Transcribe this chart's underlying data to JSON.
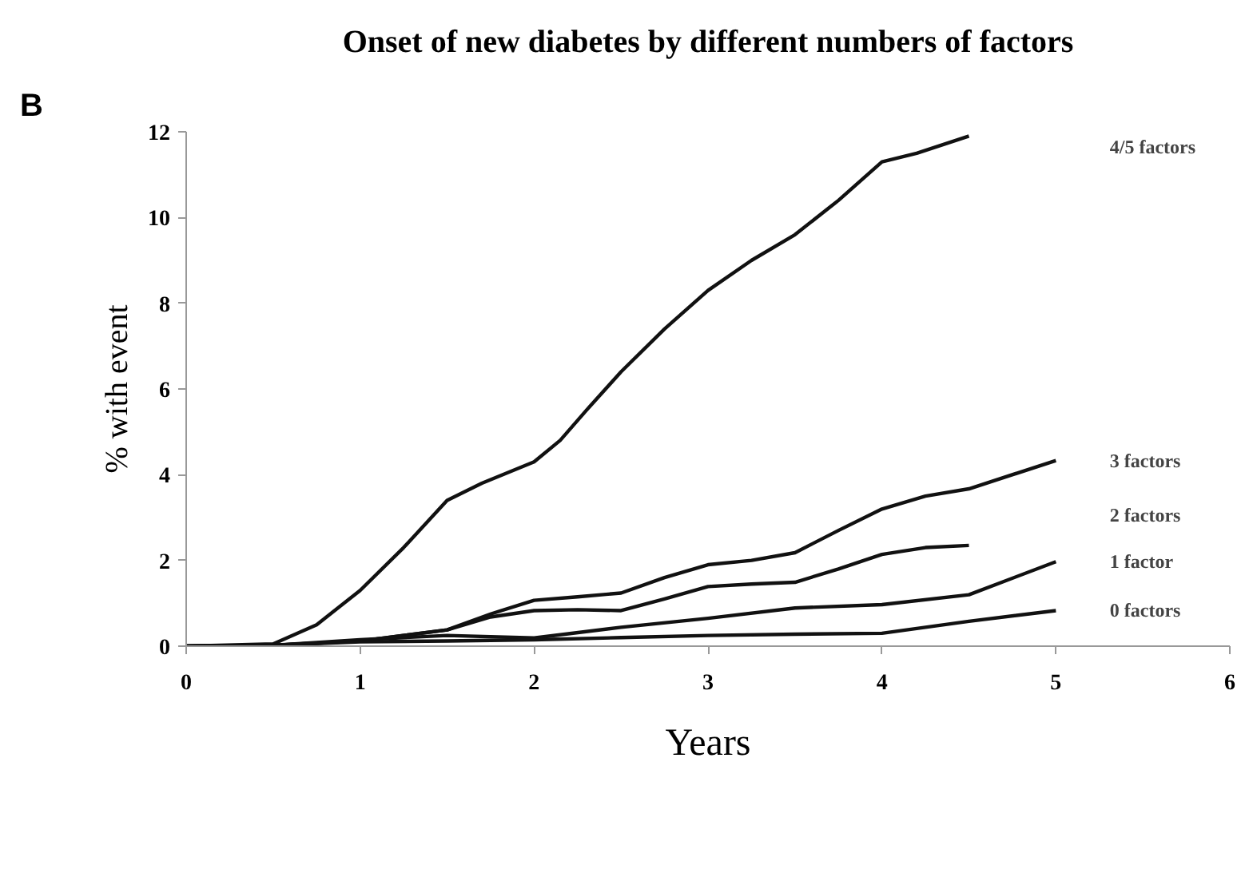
{
  "chart_data": {
    "type": "line",
    "title": "Onset of new diabetes by different numbers of factors",
    "xlabel": "Years",
    "ylabel": "% with event",
    "xlim": [
      0,
      6
    ],
    "ylim": [
      0,
      12
    ],
    "xticks": [
      0,
      1,
      2,
      3,
      4,
      5,
      6
    ],
    "yticks": [
      0,
      2,
      4,
      6,
      8,
      10,
      12
    ],
    "grid": false,
    "marker": "none",
    "line_style": "solid",
    "series": [
      {
        "name": "4/5 factors",
        "color": "#111111",
        "x": [
          0,
          0.5,
          0.75,
          1,
          1.25,
          1.5,
          1.7,
          2,
          2.15,
          2.3,
          2.5,
          2.75,
          3,
          3.25,
          3.5,
          3.75,
          4,
          4.2,
          4.5
        ],
        "values": [
          0,
          0.05,
          0.5,
          1.3,
          2.3,
          3.4,
          3.8,
          4.3,
          4.8,
          5.5,
          6.4,
          7.4,
          8.3,
          9.0,
          9.6,
          10.4,
          11.3,
          11.5,
          11.9
        ]
      },
      {
        "name": "3 factors",
        "color": "#111111",
        "x": [
          0,
          0.5,
          1,
          1.5,
          1.75,
          2,
          2.25,
          2.5,
          2.75,
          3,
          3.25,
          3.5,
          3.75,
          4,
          4.25,
          4.5,
          5
        ],
        "values": [
          0,
          0.02,
          0.12,
          0.38,
          0.75,
          1.07,
          1.15,
          1.24,
          1.6,
          1.9,
          2.0,
          2.18,
          2.7,
          3.2,
          3.5,
          3.67,
          4.33
        ]
      },
      {
        "name": "2 factors",
        "color": "#111111",
        "x": [
          0,
          0.5,
          1,
          1.5,
          1.75,
          2,
          2.25,
          2.5,
          2.75,
          3,
          3.25,
          3.5,
          3.75,
          4,
          4.25,
          4.5
        ],
        "values": [
          0,
          0.02,
          0.12,
          0.38,
          0.68,
          0.83,
          0.85,
          0.83,
          1.1,
          1.39,
          1.45,
          1.49,
          1.8,
          2.14,
          2.3,
          2.35
        ]
      },
      {
        "name": "1 factor",
        "color": "#111111",
        "x": [
          0,
          0.5,
          1,
          1.5,
          2,
          2.5,
          3,
          3.5,
          4,
          4.5,
          5
        ],
        "values": [
          0,
          0.02,
          0.15,
          0.25,
          0.19,
          0.44,
          0.65,
          0.89,
          0.97,
          1.2,
          1.97
        ]
      },
      {
        "name": "0 factors",
        "color": "#111111",
        "x": [
          0,
          0.5,
          1,
          1.5,
          2,
          2.5,
          3,
          3.5,
          4,
          4.5,
          5
        ],
        "values": [
          0,
          0.02,
          0.1,
          0.12,
          0.15,
          0.2,
          0.25,
          0.28,
          0.3,
          0.58,
          0.83
        ]
      }
    ],
    "annotations": [
      "B"
    ]
  }
}
